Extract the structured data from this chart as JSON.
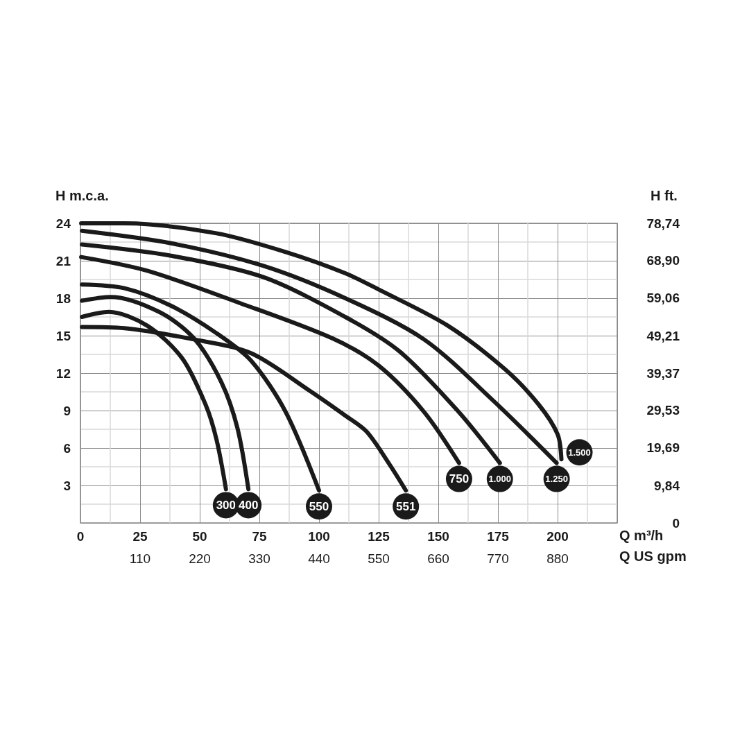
{
  "chart_data": {
    "type": "line",
    "xlabel": "Q m³/h",
    "x2label": "Q US gpm",
    "ylabel": "H m.c.a.",
    "y2label": "H ft.",
    "xlim": [
      0,
      225
    ],
    "xticks": [
      0,
      25,
      50,
      75,
      100,
      125,
      150,
      175,
      200
    ],
    "x2lim": [
      0,
      990
    ],
    "x2ticks": [
      110,
      220,
      330,
      440,
      550,
      660,
      770,
      880
    ],
    "ylim": [
      0,
      24
    ],
    "yticks": [
      3,
      6,
      9,
      12,
      15,
      18,
      21,
      24
    ],
    "y2lim": [
      0,
      78.74
    ],
    "y2ticks": [
      0,
      {
        "value": 9.84,
        "label": "9,84"
      },
      {
        "value": 19.69,
        "label": "19,69"
      },
      {
        "value": 29.53,
        "label": "29,53"
      },
      {
        "value": 39.37,
        "label": "39,37"
      },
      {
        "value": 49.21,
        "label": "49,21"
      },
      {
        "value": 59.06,
        "label": "59,06"
      },
      {
        "value": 68.9,
        "label": "68,90"
      },
      {
        "value": 78.74,
        "label": "78,74"
      }
    ],
    "grid": true,
    "legend": "bottom",
    "marker": "none",
    "line_style": "solid",
    "series": [
      {
        "name": "300",
        "color": "#1a1a1a",
        "x": [
          0.6,
          11.9,
          28,
          42.6,
          52.4,
          57,
          61
        ],
        "values": [
          16.5,
          16.9,
          15.8,
          13.2,
          9.5,
          6.7,
          2.7
        ]
      },
      {
        "name": "400",
        "color": "#1a1a1a",
        "x": [
          0.6,
          12.7,
          33,
          47.5,
          59,
          65.8,
          70.4
        ],
        "values": [
          17.8,
          18.1,
          16.9,
          14.8,
          11.3,
          7.6,
          2.7
        ]
      },
      {
        "name": "550",
        "color": "#1a1a1a",
        "x": [
          0.6,
          18.5,
          37.9,
          57,
          71.5,
          86,
          100
        ],
        "values": [
          19.1,
          18.8,
          17.4,
          15.2,
          13,
          8.9,
          2.6
        ]
      },
      {
        "name": "551",
        "color": "#1a1a1a",
        "x": [
          0.6,
          18.5,
          47.5,
          71.5,
          96,
          111,
          120,
          129.5,
          136.4
        ],
        "values": [
          15.7,
          15.6,
          14.7,
          13.6,
          10.6,
          8.6,
          7.3,
          4.7,
          2.6
        ]
      },
      {
        "name": "750",
        "color": "#1a1a1a",
        "x": [
          0.3,
          28,
          67,
          105.4,
          125,
          144,
          158.7
        ],
        "values": [
          21.3,
          20.2,
          17.6,
          14.8,
          12.6,
          8.9,
          4.8
        ]
      },
      {
        "name": "1.000",
        "color": "#1a1a1a",
        "x": [
          0.6,
          38,
          76.5,
          111,
          134,
          158.5,
          175.8
        ],
        "values": [
          22.3,
          21.4,
          19.7,
          16.5,
          13.7,
          8.9,
          4.8
        ]
      },
      {
        "name": "1.250",
        "color": "#1a1a1a",
        "x": [
          0.6,
          38,
          76.5,
          111,
          144,
          173,
          199.6
        ],
        "values": [
          23.4,
          22.4,
          20.6,
          18,
          14.7,
          9.8,
          4.8
        ]
      },
      {
        "name": "1.500",
        "color": "#1a1a1a",
        "x": [
          0.3,
          18.5,
          57,
          86,
          111,
          125,
          154,
          178,
          192,
          200,
          201.6
        ],
        "values": [
          24,
          24,
          23.2,
          21.7,
          20,
          18.7,
          15.8,
          12.3,
          9.5,
          7.1,
          5.1
        ]
      }
    ]
  }
}
